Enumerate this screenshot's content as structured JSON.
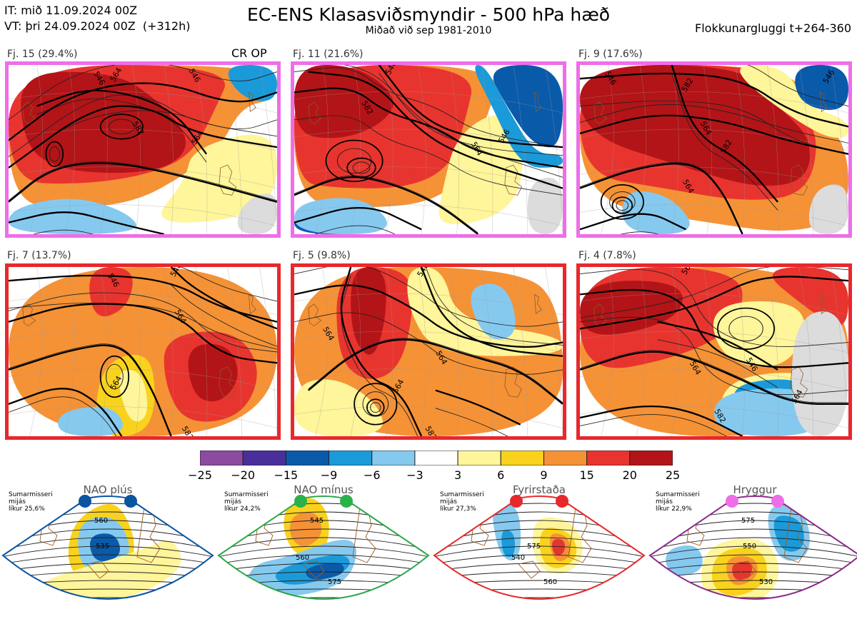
{
  "header": {
    "it_line": "IT: mið 11.09.2024 00Z",
    "vt_line": "VT: þri 24.09.2024 00Z  (+312h)",
    "title": "EC-ENS Klasasviðsmyndir - 500 hPa hæð",
    "subtitle": "Miðað við sep 1981-2010",
    "window": "Flokkunargluggi t+264-360"
  },
  "panels": [
    {
      "label": "Fj. 15 (29.4%)",
      "regime_color": "#ee6ee8",
      "tag": "CR OP",
      "contours": [
        "546",
        "564",
        "582",
        "564",
        "546"
      ]
    },
    {
      "label": "Fj. 11 (21.6%)",
      "regime_color": "#ee6ee8",
      "tag": "",
      "contours": [
        "582",
        "546",
        "564",
        "546"
      ]
    },
    {
      "label": "Fj. 9 (17.6%)",
      "regime_color": "#ee6ee8",
      "tag": "",
      "contours": [
        "546",
        "582",
        "564",
        "582",
        "564",
        "546"
      ]
    },
    {
      "label": "Fj. 7 (13.7%)",
      "regime_color": "#e8282c",
      "tag": "",
      "contours": [
        "546",
        "546",
        "564",
        "564",
        "582"
      ]
    },
    {
      "label": "Fj. 5 (9.8%)",
      "regime_color": "#e8282c",
      "tag": "",
      "contours": [
        "564",
        "546",
        "564",
        "564",
        "582"
      ]
    },
    {
      "label": "Fj. 4 (7.8%)",
      "regime_color": "#e8282c",
      "tag": "",
      "contours": [
        "564",
        "564",
        "546",
        "564",
        "582"
      ]
    }
  ],
  "colorbar": {
    "ticks": [
      "−25",
      "−20",
      "−15",
      "−9",
      "−6",
      "−3",
      "3",
      "6",
      "9",
      "15",
      "20",
      "25"
    ],
    "colors": [
      "#8c4aa0",
      "#4a2f9a",
      "#0a5aaa",
      "#1b9ad9",
      "#86c9ef",
      "#ffffff",
      "#fff59a",
      "#f9d21d",
      "#f59236",
      "#e8342e",
      "#b31417"
    ]
  },
  "regimes": [
    {
      "name": "NAO plús",
      "color": "#0a55a0",
      "dot": "#0a55a0",
      "sumar": "Sumarmisseri",
      "mijas": "mijás",
      "likur": "líkur 25,6%",
      "contours": [
        "535",
        "560"
      ]
    },
    {
      "name": "NAO mínus",
      "color": "#2aa84a",
      "dot": "#2ab24a",
      "sumar": "Sumarmisseri",
      "mijas": "mijás",
      "likur": "líkur 24,2%",
      "contours": [
        "545",
        "560",
        "575"
      ]
    },
    {
      "name": "Fyrirstaða",
      "color": "#e8282c",
      "dot": "#e8282c",
      "sumar": "Sumarmisseri",
      "mijas": "mijás",
      "likur": "líkur 27,3%",
      "contours": [
        "540",
        "560",
        "575"
      ]
    },
    {
      "name": "Hryggur",
      "color": "#8a2a8a",
      "dot": "#ee6ee8",
      "sumar": "Sumarmisseri",
      "mijas": "mijás",
      "likur": "líkur 22,9%",
      "contours": [
        "530",
        "550",
        "575"
      ]
    }
  ]
}
